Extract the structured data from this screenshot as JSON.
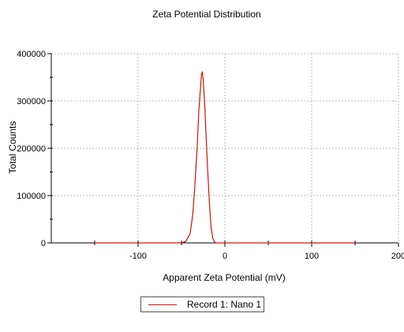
{
  "chart_data": {
    "type": "line",
    "title": "Zeta Potential Distribution",
    "xlabel": "Apparent Zeta Potential (mV)",
    "ylabel": "Total Counts",
    "xlim": [
      -200,
      200
    ],
    "ylim": [
      0,
      400000
    ],
    "x_ticks": [
      -100,
      0,
      100,
      200
    ],
    "y_ticks": [
      0,
      100000,
      200000,
      300000,
      400000
    ],
    "grid": true,
    "legend_position": "bottom-center",
    "series": [
      {
        "name": "Record 1: Nano 1",
        "color": "#d01010",
        "x": [
          -150,
          -100,
          -50,
          -45,
          -40,
          -37,
          -35,
          -32,
          -30,
          -28,
          -27,
          -26,
          -25,
          -24,
          -23,
          -22,
          -20,
          -18,
          -16,
          -14,
          -12,
          -10,
          -5,
          0,
          50,
          100,
          150
        ],
        "y": [
          0,
          0,
          0,
          3000,
          20000,
          60000,
          110000,
          200000,
          280000,
          330000,
          355000,
          362000,
          345000,
          315000,
          285000,
          240000,
          160000,
          90000,
          35000,
          10000,
          2000,
          0,
          0,
          0,
          0,
          0,
          0
        ]
      }
    ]
  }
}
